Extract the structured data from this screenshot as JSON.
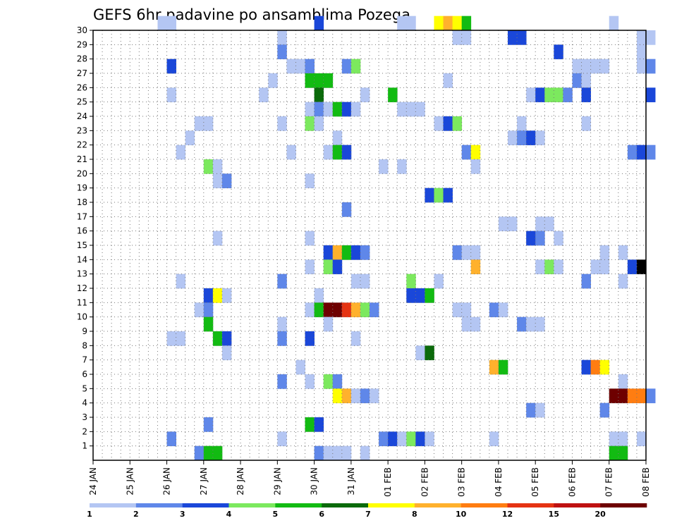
{
  "chart_data": {
    "type": "heatmap",
    "title": "GEFS 6hr padavine po ansamblima Pozega",
    "x_ticks": [
      "24 JAN",
      "25 JAN",
      "26 JAN",
      "27 JAN",
      "28 JAN",
      "29 JAN",
      "30 JAN",
      "31 JAN",
      "01 FEB",
      "02 FEB",
      "03 FEB",
      "04 FEB",
      "05 FEB",
      "06 FEB",
      "07 FEB",
      "08 FEB"
    ],
    "y_ticks": [
      "1",
      "2",
      "3",
      "4",
      "5",
      "6",
      "7",
      "8",
      "9",
      "10",
      "11",
      "12",
      "13",
      "14",
      "15",
      "16",
      "17",
      "18",
      "19",
      "20",
      "21",
      "22",
      "23",
      "24",
      "25",
      "26",
      "27",
      "28",
      "29",
      "30"
    ],
    "xlim_steps": [
      0,
      60
    ],
    "ylim": [
      0,
      30
    ],
    "grid": true,
    "colorbar": {
      "labels": [
        "1",
        "2",
        "3",
        "4",
        "5",
        "6",
        "7",
        "8",
        "10",
        "12",
        "15",
        "20"
      ],
      "colors": [
        "#b4c6f3",
        "#5f87e9",
        "#1a47d9",
        "#7ce95e",
        "#12bb12",
        "#0b6a0b",
        "#ffff00",
        "#ffb12d",
        "#ff7d11",
        "#e53312",
        "#bf1111",
        "#6e0000"
      ]
    },
    "cell_format": "[time_step, member, color_class]",
    "cells": [
      [
        7,
        30,
        1
      ],
      [
        8,
        30,
        1
      ],
      [
        24,
        30,
        3
      ],
      [
        33,
        30,
        1
      ],
      [
        34,
        30,
        1
      ],
      [
        37,
        30,
        7
      ],
      [
        38,
        30,
        8
      ],
      [
        39,
        30,
        7
      ],
      [
        40,
        30,
        5
      ],
      [
        56,
        30,
        1
      ],
      [
        20,
        29,
        1
      ],
      [
        39,
        29,
        1
      ],
      [
        40,
        29,
        1
      ],
      [
        45,
        29,
        3
      ],
      [
        46,
        29,
        3
      ],
      [
        59,
        29,
        1
      ],
      [
        60,
        29,
        1
      ],
      [
        20,
        28,
        2
      ],
      [
        50,
        28,
        3
      ],
      [
        59,
        28,
        1
      ],
      [
        8,
        27,
        3
      ],
      [
        21,
        27,
        1
      ],
      [
        22,
        27,
        1
      ],
      [
        23,
        27,
        2
      ],
      [
        27,
        27,
        2
      ],
      [
        28,
        27,
        4
      ],
      [
        52,
        27,
        1
      ],
      [
        53,
        27,
        1
      ],
      [
        54,
        27,
        1
      ],
      [
        55,
        27,
        1
      ],
      [
        59,
        27,
        1
      ],
      [
        60,
        27,
        2
      ],
      [
        19,
        26,
        1
      ],
      [
        23,
        26,
        5
      ],
      [
        24,
        26,
        5
      ],
      [
        25,
        26,
        5
      ],
      [
        38,
        26,
        1
      ],
      [
        52,
        26,
        2
      ],
      [
        53,
        26,
        1
      ],
      [
        8,
        25,
        1
      ],
      [
        18,
        25,
        1
      ],
      [
        24,
        25,
        6
      ],
      [
        29,
        25,
        1
      ],
      [
        32,
        25,
        5
      ],
      [
        47,
        25,
        1
      ],
      [
        48,
        25,
        3
      ],
      [
        49,
        25,
        4
      ],
      [
        50,
        25,
        4
      ],
      [
        51,
        25,
        2
      ],
      [
        53,
        25,
        3
      ],
      [
        60,
        25,
        3
      ],
      [
        23,
        24,
        1
      ],
      [
        24,
        24,
        2
      ],
      [
        25,
        24,
        1
      ],
      [
        26,
        24,
        5
      ],
      [
        27,
        24,
        3
      ],
      [
        28,
        24,
        1
      ],
      [
        33,
        24,
        1
      ],
      [
        34,
        24,
        1
      ],
      [
        35,
        24,
        1
      ],
      [
        11,
        23,
        1
      ],
      [
        12,
        23,
        1
      ],
      [
        20,
        23,
        1
      ],
      [
        23,
        23,
        4
      ],
      [
        24,
        23,
        1
      ],
      [
        37,
        23,
        1
      ],
      [
        38,
        23,
        3
      ],
      [
        39,
        23,
        4
      ],
      [
        46,
        23,
        1
      ],
      [
        53,
        23,
        1
      ],
      [
        10,
        22,
        1
      ],
      [
        26,
        22,
        1
      ],
      [
        45,
        22,
        1
      ],
      [
        46,
        22,
        2
      ],
      [
        47,
        22,
        3
      ],
      [
        48,
        22,
        1
      ],
      [
        9,
        21,
        1
      ],
      [
        21,
        21,
        1
      ],
      [
        25,
        21,
        1
      ],
      [
        26,
        21,
        5
      ],
      [
        27,
        21,
        3
      ],
      [
        40,
        21,
        2
      ],
      [
        41,
        21,
        7
      ],
      [
        58,
        21,
        2
      ],
      [
        59,
        21,
        3
      ],
      [
        60,
        21,
        2
      ],
      [
        12,
        20,
        4
      ],
      [
        13,
        20,
        1
      ],
      [
        31,
        20,
        1
      ],
      [
        33,
        20,
        1
      ],
      [
        41,
        20,
        1
      ],
      [
        13,
        19,
        1
      ],
      [
        14,
        19,
        2
      ],
      [
        23,
        19,
        1
      ],
      [
        36,
        18,
        3
      ],
      [
        37,
        18,
        4
      ],
      [
        38,
        18,
        3
      ],
      [
        27,
        17,
        2
      ],
      [
        44,
        16,
        1
      ],
      [
        45,
        16,
        1
      ],
      [
        48,
        16,
        1
      ],
      [
        49,
        16,
        1
      ],
      [
        13,
        15,
        1
      ],
      [
        23,
        15,
        1
      ],
      [
        47,
        15,
        3
      ],
      [
        48,
        15,
        2
      ],
      [
        50,
        15,
        1
      ],
      [
        25,
        14,
        3
      ],
      [
        26,
        14,
        8
      ],
      [
        27,
        14,
        5
      ],
      [
        28,
        14,
        3
      ],
      [
        29,
        14,
        2
      ],
      [
        39,
        14,
        2
      ],
      [
        40,
        14,
        1
      ],
      [
        41,
        14,
        1
      ],
      [
        55,
        14,
        1
      ],
      [
        57,
        14,
        1
      ],
      [
        23,
        13,
        1
      ],
      [
        25,
        13,
        4
      ],
      [
        26,
        13,
        3
      ],
      [
        41,
        13,
        8
      ],
      [
        48,
        13,
        1
      ],
      [
        49,
        13,
        4
      ],
      [
        50,
        13,
        1
      ],
      [
        54,
        13,
        1
      ],
      [
        55,
        13,
        1
      ],
      [
        58,
        13,
        3
      ],
      [
        59,
        13,
        13
      ],
      [
        9,
        12,
        1
      ],
      [
        20,
        12,
        2
      ],
      [
        28,
        12,
        1
      ],
      [
        29,
        12,
        1
      ],
      [
        34,
        12,
        4
      ],
      [
        37,
        12,
        1
      ],
      [
        53,
        12,
        2
      ],
      [
        57,
        12,
        1
      ],
      [
        12,
        11,
        3
      ],
      [
        13,
        11,
        7
      ],
      [
        14,
        11,
        1
      ],
      [
        24,
        11,
        1
      ],
      [
        34,
        11,
        3
      ],
      [
        35,
        11,
        3
      ],
      [
        36,
        11,
        5
      ],
      [
        11,
        10,
        1
      ],
      [
        12,
        10,
        2
      ],
      [
        23,
        10,
        1
      ],
      [
        24,
        10,
        5
      ],
      [
        25,
        10,
        12
      ],
      [
        26,
        10,
        12
      ],
      [
        27,
        10,
        10
      ],
      [
        28,
        10,
        8
      ],
      [
        29,
        10,
        4
      ],
      [
        30,
        10,
        2
      ],
      [
        39,
        10,
        1
      ],
      [
        40,
        10,
        1
      ],
      [
        43,
        10,
        2
      ],
      [
        44,
        10,
        1
      ],
      [
        12,
        9,
        5
      ],
      [
        20,
        9,
        1
      ],
      [
        25,
        9,
        1
      ],
      [
        40,
        9,
        1
      ],
      [
        41,
        9,
        1
      ],
      [
        46,
        9,
        2
      ],
      [
        47,
        9,
        1
      ],
      [
        48,
        9,
        1
      ],
      [
        8,
        8,
        1
      ],
      [
        9,
        8,
        1
      ],
      [
        13,
        8,
        5
      ],
      [
        14,
        8,
        3
      ],
      [
        20,
        8,
        2
      ],
      [
        23,
        8,
        3
      ],
      [
        28,
        8,
        1
      ],
      [
        14,
        7,
        1
      ],
      [
        35,
        7,
        1
      ],
      [
        36,
        7,
        6
      ],
      [
        22,
        6,
        1
      ],
      [
        43,
        6,
        8
      ],
      [
        44,
        6,
        5
      ],
      [
        53,
        6,
        3
      ],
      [
        54,
        6,
        9
      ],
      [
        55,
        6,
        7
      ],
      [
        20,
        5,
        2
      ],
      [
        23,
        5,
        1
      ],
      [
        25,
        5,
        4
      ],
      [
        26,
        5,
        2
      ],
      [
        57,
        5,
        1
      ],
      [
        26,
        4,
        7
      ],
      [
        27,
        4,
        8
      ],
      [
        28,
        4,
        1
      ],
      [
        29,
        4,
        2
      ],
      [
        30,
        4,
        1
      ],
      [
        56,
        4,
        12
      ],
      [
        57,
        4,
        12
      ],
      [
        58,
        4,
        9
      ],
      [
        59,
        4,
        9
      ],
      [
        60,
        4,
        2
      ],
      [
        47,
        3,
        2
      ],
      [
        48,
        3,
        1
      ],
      [
        55,
        3,
        2
      ],
      [
        12,
        2,
        2
      ],
      [
        23,
        2,
        5
      ],
      [
        24,
        2,
        3
      ],
      [
        8,
        1,
        2
      ],
      [
        20,
        1,
        1
      ],
      [
        31,
        1,
        2
      ],
      [
        32,
        1,
        3
      ],
      [
        33,
        1,
        1
      ],
      [
        34,
        1,
        4
      ],
      [
        35,
        1,
        3
      ],
      [
        36,
        1,
        1
      ],
      [
        43,
        1,
        1
      ],
      [
        56,
        1,
        1
      ],
      [
        57,
        1,
        1
      ],
      [
        59,
        1,
        1
      ],
      [
        11,
        0,
        2
      ],
      [
        12,
        0,
        5
      ],
      [
        13,
        0,
        5
      ],
      [
        24,
        0,
        2
      ],
      [
        25,
        0,
        1
      ],
      [
        26,
        0,
        1
      ],
      [
        27,
        0,
        1
      ],
      [
        29,
        0,
        1
      ],
      [
        56,
        0,
        5
      ],
      [
        57,
        0,
        5
      ]
    ]
  }
}
